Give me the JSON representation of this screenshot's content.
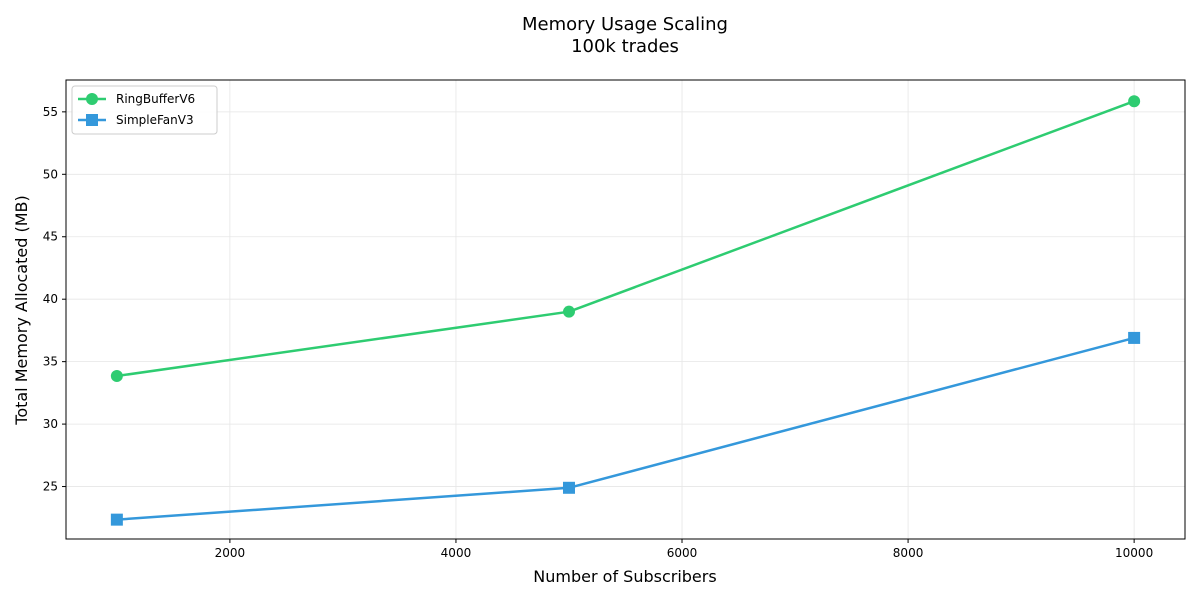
{
  "chart_data": {
    "type": "line",
    "title": "Memory Usage Scaling",
    "subtitle": "100k trades",
    "xlabel": "Number of Subscribers",
    "ylabel": "Total Memory Allocated (MB)",
    "xlim": [
      550,
      10450
    ],
    "ylim": [
      20.8,
      57.55
    ],
    "xticks": [
      2000,
      4000,
      6000,
      8000,
      10000
    ],
    "yticks": [
      25,
      30,
      35,
      40,
      45,
      50,
      55
    ],
    "grid": true,
    "legend_position": "top-left",
    "x": [
      1000,
      5000,
      10000
    ],
    "series": [
      {
        "name": "RingBufferV6",
        "values": [
          33.85,
          39.0,
          55.85
        ],
        "color": "#2ecc71",
        "marker": "circle"
      },
      {
        "name": "SimpleFanV3",
        "values": [
          22.35,
          24.9,
          36.9
        ],
        "color": "#3498db",
        "marker": "square"
      }
    ]
  }
}
